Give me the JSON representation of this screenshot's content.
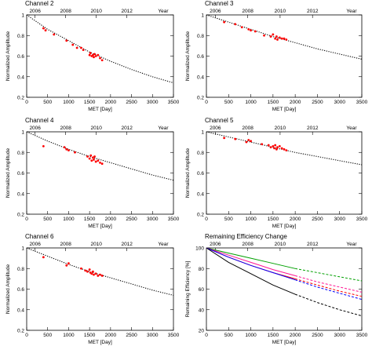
{
  "chart_data": [
    {
      "type": "scatter",
      "title": "Channel 2",
      "xlabel": "MET [Day]",
      "ylabel": "Normalized Amplitude",
      "top_axis_label": "Year",
      "year_ticks": [
        "2006",
        "2008",
        "2010",
        "2012"
      ],
      "year_tick_x": [
        200,
        930,
        1660,
        2390
      ],
      "xlim": [
        0,
        3500
      ],
      "ylim": [
        0.2,
        1.0
      ],
      "x_ticks": [
        0,
        500,
        1000,
        1500,
        2000,
        2500,
        3000,
        3500
      ],
      "y_ticks": [
        0.2,
        0.4,
        0.6,
        0.8,
        1.0
      ],
      "fit": {
        "style": "dotted",
        "x": [
          0,
          500,
          1000,
          1500,
          2000,
          2500,
          3000,
          3500
        ],
        "y": [
          1.0,
          0.86,
          0.75,
          0.64,
          0.55,
          0.47,
          0.4,
          0.34
        ]
      },
      "points": {
        "color": "#ff0000",
        "x": [
          400,
          450,
          650,
          950,
          1100,
          1200,
          1300,
          1350,
          1500,
          1520,
          1550,
          1580,
          1600,
          1620,
          1650,
          1700,
          1750,
          1800
        ],
        "y": [
          0.87,
          0.85,
          0.81,
          0.75,
          0.71,
          0.68,
          0.68,
          0.66,
          0.61,
          0.63,
          0.6,
          0.61,
          0.59,
          0.62,
          0.6,
          0.61,
          0.58,
          0.56
        ]
      }
    },
    {
      "type": "scatter",
      "title": "Channel 3",
      "xlabel": "MET [Day]",
      "ylabel": "Normalized Amplitude",
      "top_axis_label": "Year",
      "year_ticks": [
        "2006",
        "2008",
        "2010",
        "2012"
      ],
      "year_tick_x": [
        200,
        930,
        1660,
        2390
      ],
      "xlim": [
        0,
        3500
      ],
      "ylim": [
        0.2,
        1.0
      ],
      "x_ticks": [
        0,
        500,
        1000,
        1500,
        2000,
        2500,
        3000,
        3500
      ],
      "y_ticks": [
        0.2,
        0.4,
        0.6,
        0.8,
        1.0
      ],
      "fit": {
        "style": "dotted",
        "x": [
          0,
          500,
          1000,
          1500,
          2000,
          2500,
          3000,
          3500
        ],
        "y": [
          1.0,
          0.93,
          0.86,
          0.79,
          0.73,
          0.67,
          0.62,
          0.57
        ]
      },
      "points": {
        "color": "#ff0000",
        "x": [
          400,
          650,
          800,
          950,
          1000,
          1100,
          1300,
          1450,
          1500,
          1550,
          1580,
          1600,
          1650,
          1700,
          1750,
          1800
        ],
        "y": [
          0.93,
          0.91,
          0.88,
          0.86,
          0.85,
          0.84,
          0.8,
          0.79,
          0.81,
          0.77,
          0.79,
          0.76,
          0.78,
          0.77,
          0.77,
          0.76
        ]
      }
    },
    {
      "type": "scatter",
      "title": "Channel 4",
      "xlabel": "MET [Day]",
      "ylabel": "Normalized Amplitude",
      "top_axis_label": "Year",
      "year_ticks": [
        "2006",
        "2008",
        "2010",
        "2012"
      ],
      "year_tick_x": [
        200,
        930,
        1660,
        2390
      ],
      "xlim": [
        0,
        3500
      ],
      "ylim": [
        0.2,
        1.0
      ],
      "x_ticks": [
        0,
        500,
        1000,
        1500,
        2000,
        2500,
        3000,
        3500
      ],
      "y_ticks": [
        0.2,
        0.4,
        0.6,
        0.8,
        1.0
      ],
      "fit": {
        "style": "dotted",
        "x": [
          0,
          500,
          1000,
          1500,
          2000,
          2500,
          3000,
          3500
        ],
        "y": [
          1.0,
          0.91,
          0.83,
          0.76,
          0.7,
          0.64,
          0.58,
          0.53
        ]
      },
      "points": {
        "color": "#ff0000",
        "x": [
          400,
          900,
          950,
          1000,
          1150,
          1450,
          1500,
          1530,
          1550,
          1580,
          1600,
          1620,
          1650,
          1700,
          1750,
          1800
        ],
        "y": [
          0.86,
          0.85,
          0.83,
          0.82,
          0.8,
          0.76,
          0.74,
          0.77,
          0.72,
          0.75,
          0.73,
          0.76,
          0.71,
          0.72,
          0.7,
          0.69
        ]
      }
    },
    {
      "type": "scatter",
      "title": "Channel 5",
      "xlabel": "MET [Day]",
      "ylabel": "Normalized Amplitude",
      "top_axis_label": "Year",
      "year_ticks": [
        "2006",
        "2008",
        "2010",
        "2012"
      ],
      "year_tick_x": [
        200,
        930,
        1660,
        2390
      ],
      "xlim": [
        0,
        3500
      ],
      "ylim": [
        0.2,
        1.0
      ],
      "x_ticks": [
        0,
        500,
        1000,
        1500,
        2000,
        2500,
        3000,
        3500
      ],
      "y_ticks": [
        0.2,
        0.4,
        0.6,
        0.8,
        1.0
      ],
      "fit": {
        "style": "dotted",
        "x": [
          0,
          500,
          1000,
          1500,
          2000,
          2500,
          3000,
          3500
        ],
        "y": [
          1.0,
          0.95,
          0.9,
          0.85,
          0.8,
          0.76,
          0.72,
          0.68
        ]
      },
      "points": {
        "color": "#ff0000",
        "x": [
          400,
          650,
          900,
          950,
          1000,
          1250,
          1400,
          1450,
          1500,
          1530,
          1550,
          1580,
          1600,
          1650,
          1700,
          1750,
          1800
        ],
        "y": [
          0.94,
          0.93,
          0.9,
          0.92,
          0.91,
          0.88,
          0.87,
          0.85,
          0.86,
          0.84,
          0.87,
          0.83,
          0.85,
          0.86,
          0.84,
          0.83,
          0.82
        ]
      }
    },
    {
      "type": "scatter",
      "title": "Channel 6",
      "xlabel": "MET [Day]",
      "ylabel": "Normalized Amplitude",
      "top_axis_label": "Year",
      "year_ticks": [
        "2006",
        "2008",
        "2010",
        "2012"
      ],
      "year_tick_x": [
        200,
        930,
        1660,
        2390
      ],
      "xlim": [
        0,
        3500
      ],
      "ylim": [
        0.2,
        1.0
      ],
      "x_ticks": [
        0,
        500,
        1000,
        1500,
        2000,
        2500,
        3000,
        3500
      ],
      "y_ticks": [
        0.2,
        0.4,
        0.6,
        0.8,
        1.0
      ],
      "fit": {
        "style": "dotted",
        "x": [
          0,
          500,
          1000,
          1500,
          2000,
          2500,
          3000,
          3500
        ],
        "y": [
          1.0,
          0.92,
          0.84,
          0.77,
          0.71,
          0.65,
          0.59,
          0.54
        ]
      },
      "points": {
        "color": "#ff0000",
        "x": [
          400,
          950,
          1000,
          1300,
          1400,
          1450,
          1500,
          1520,
          1550,
          1580,
          1600,
          1650,
          1700,
          1750,
          1800
        ],
        "y": [
          0.91,
          0.83,
          0.85,
          0.8,
          0.78,
          0.77,
          0.79,
          0.76,
          0.75,
          0.77,
          0.74,
          0.75,
          0.73,
          0.74,
          0.73
        ]
      }
    },
    {
      "type": "line",
      "title": "Remaining Efficiency Change",
      "xlabel": "MET [Day]",
      "ylabel": "Remaining Efficiency [%]",
      "top_axis_label": "Year",
      "year_ticks": [
        "2006",
        "2008",
        "2010",
        "2012"
      ],
      "year_tick_x": [
        200,
        930,
        1660,
        2390
      ],
      "xlim": [
        0,
        3500
      ],
      "ylim": [
        20,
        100
      ],
      "x_ticks": [
        0,
        500,
        1000,
        1500,
        2000,
        2500,
        3000,
        3500
      ],
      "y_ticks": [
        20,
        40,
        60,
        80,
        100
      ],
      "x": [
        0,
        500,
        1000,
        1500,
        2000,
        2500,
        3000,
        3500
      ],
      "series": [
        {
          "color": "#00a000",
          "values": [
            100,
            95,
            90,
            85,
            80,
            76,
            72,
            68
          ]
        },
        {
          "color": "#ff1493",
          "values": [
            100,
            93,
            86,
            79,
            73,
            67,
            62,
            57
          ]
        },
        {
          "color": "#ff0000",
          "values": [
            100,
            91,
            83,
            76,
            70,
            64,
            58,
            53
          ]
        },
        {
          "color": "#0000ff",
          "values": [
            100,
            91,
            83,
            76,
            69,
            62,
            56,
            50
          ]
        },
        {
          "color": "#000000",
          "values": [
            100,
            86,
            75,
            64,
            55,
            47,
            40,
            34
          ]
        }
      ],
      "extrapolation_from_x": 2000
    }
  ]
}
